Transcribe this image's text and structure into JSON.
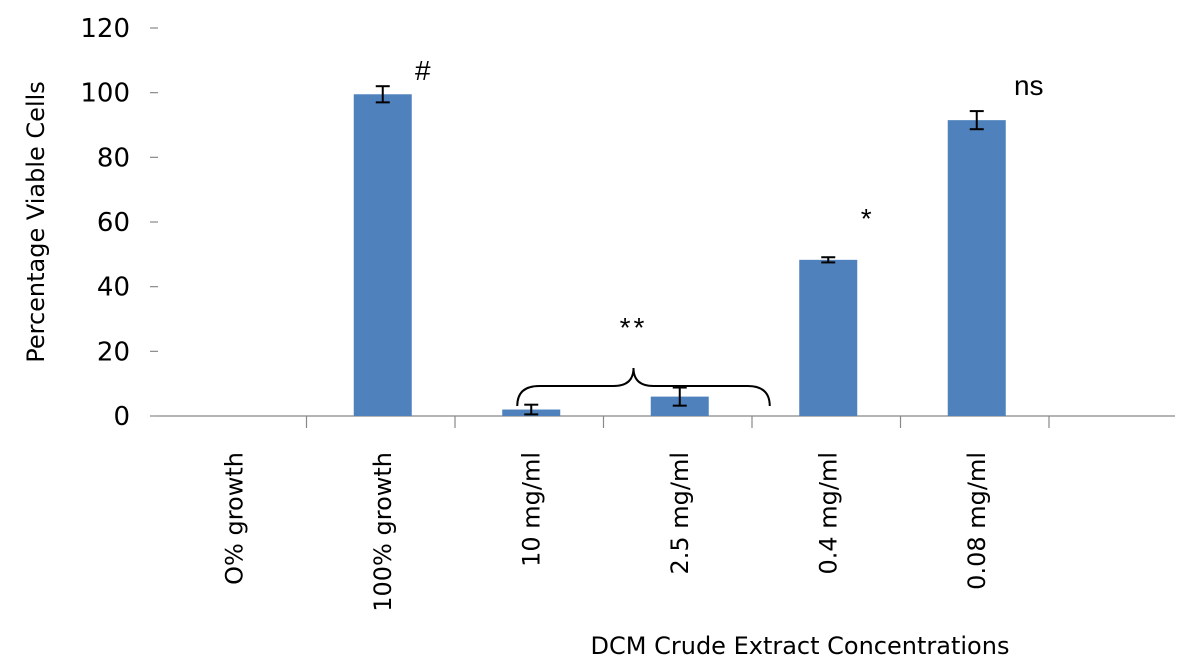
{
  "chart_data": {
    "type": "bar",
    "title": "",
    "xlabel": "DCM Crude Extract Concentrations",
    "ylabel": "Percentage Viable Cells",
    "ylim": [
      0,
      120
    ],
    "yticks": [
      0,
      20,
      40,
      60,
      80,
      100,
      120
    ],
    "categories": [
      "O% growth",
      "100% growth",
      "10 mg/ml",
      "2.5 mg/ml",
      "0.4 mg/ml",
      "0.08 mg/ml"
    ],
    "values": [
      0,
      99.5,
      2,
      6,
      48.3,
      91.5
    ],
    "errors": [
      0,
      2.5,
      1.5,
      2.8,
      0.8,
      2.8
    ],
    "annotations": [
      {
        "category": "100% growth",
        "text": "#"
      },
      {
        "category": "2.5 mg/ml",
        "text": "**",
        "spans": [
          "10 mg/ml",
          "2.5 mg/ml"
        ]
      },
      {
        "category": "0.4 mg/ml",
        "text": "*"
      },
      {
        "category": "0.08 mg/ml",
        "text": "ns"
      }
    ],
    "bar_color": "#4f81bd",
    "grid": false,
    "legend": "none"
  }
}
